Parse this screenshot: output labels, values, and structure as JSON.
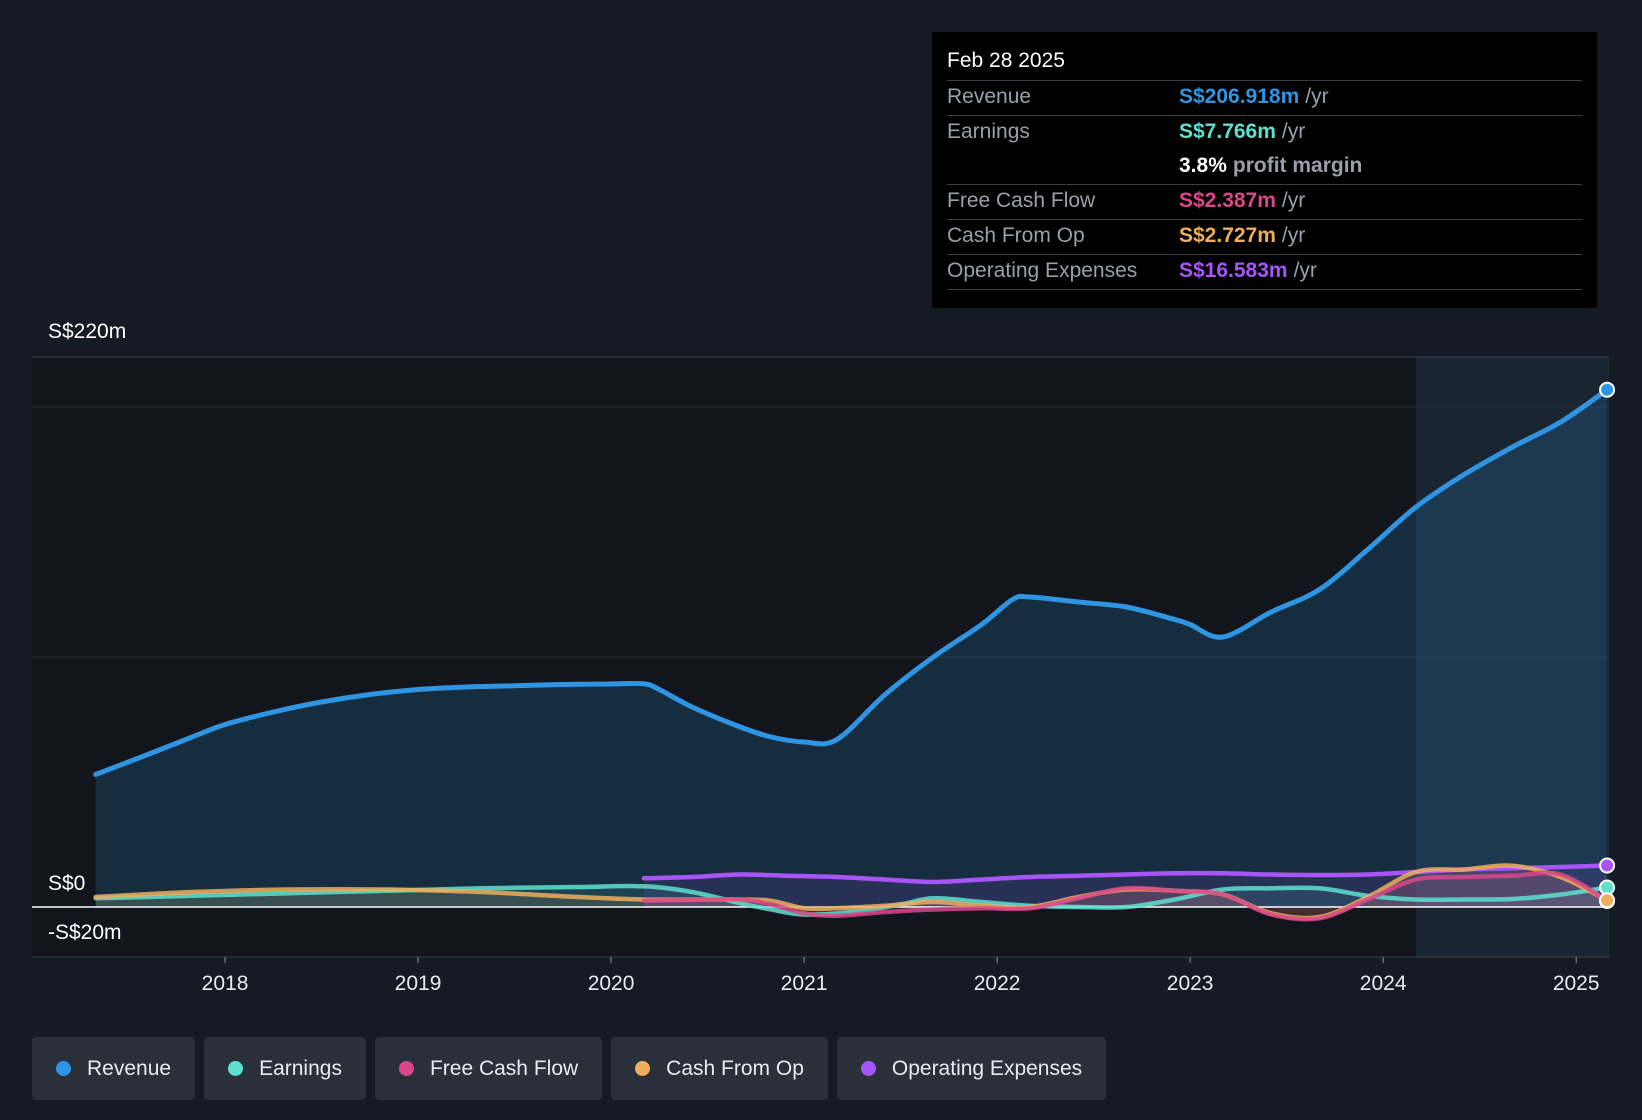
{
  "tooltip": {
    "date": "Feb 28 2025",
    "rows": {
      "revenue": {
        "label": "Revenue",
        "value": "S$206.918m",
        "unit": "/yr",
        "color": "#2f95e3"
      },
      "earnings": {
        "label": "Earnings",
        "value": "S$7.766m",
        "unit": "/yr",
        "color": "#5ee0cf"
      },
      "margin": {
        "value": "3.8%",
        "unit": "profit margin"
      },
      "fcf": {
        "label": "Free Cash Flow",
        "value": "S$2.387m",
        "unit": "/yr",
        "color": "#d9488a"
      },
      "cfo": {
        "label": "Cash From Op",
        "value": "S$2.727m",
        "unit": "/yr",
        "color": "#eeae5c"
      },
      "opex": {
        "label": "Operating Expenses",
        "value": "S$16.583m",
        "unit": "/yr",
        "color": "#a855f7"
      }
    }
  },
  "legend": [
    {
      "label": "Revenue",
      "color": "#2f95e3"
    },
    {
      "label": "Earnings",
      "color": "#5ee0cf"
    },
    {
      "label": "Free Cash Flow",
      "color": "#d9488a"
    },
    {
      "label": "Cash From Op",
      "color": "#eeae5c"
    },
    {
      "label": "Operating Expenses",
      "color": "#a855f7"
    }
  ],
  "chart_data": {
    "type": "line",
    "y_tick_labels": [
      "S$220m",
      "S$0",
      "-S$20m"
    ],
    "ylim": [
      -20,
      220
    ],
    "xlim": [
      2017.0,
      2025.17
    ],
    "x_ticks": [
      2018,
      2019,
      2020,
      2021,
      2022,
      2023,
      2024,
      2025
    ],
    "x_tick_labels": [
      "2018",
      "2019",
      "2020",
      "2021",
      "2022",
      "2023",
      "2024",
      "2025"
    ],
    "forecast_shade_start": 2024.17,
    "series": [
      {
        "name": "Revenue",
        "color": "#2f95e3",
        "x": [
          2017.33,
          2017.6,
          2017.83,
          2018.0,
          2018.25,
          2018.5,
          2018.75,
          2019.0,
          2019.25,
          2019.5,
          2019.75,
          2020.0,
          2020.17,
          2020.25,
          2020.42,
          2020.67,
          2020.83,
          2021.0,
          2021.17,
          2021.42,
          2021.67,
          2021.92,
          2022.08,
          2022.17,
          2022.42,
          2022.67,
          2022.92,
          2023.0,
          2023.17,
          2023.42,
          2023.67,
          2023.92,
          2024.17,
          2024.42,
          2024.67,
          2024.92,
          2025.16
        ],
        "y": [
          53,
          61,
          68,
          73,
          78,
          82,
          85,
          87,
          88,
          88.5,
          89,
          89.2,
          89.3,
          87,
          80,
          72,
          68,
          66,
          67,
          85,
          100,
          113,
          123,
          124,
          122,
          120,
          115,
          113,
          108,
          118,
          127,
          143,
          160,
          173,
          184,
          194,
          206.9
        ]
      },
      {
        "name": "Earnings",
        "color": "#5ee0cf",
        "x": [
          2017.33,
          2017.83,
          2018.33,
          2018.83,
          2019.33,
          2019.83,
          2020.17,
          2020.42,
          2020.67,
          2020.83,
          2021.0,
          2021.25,
          2021.5,
          2021.67,
          2021.92,
          2022.17,
          2022.42,
          2022.67,
          2022.92,
          2023.17,
          2023.42,
          2023.67,
          2023.92,
          2024.17,
          2024.42,
          2024.67,
          2024.92,
          2025.16
        ],
        "y": [
          3.5,
          4.5,
          5.5,
          6.5,
          7.5,
          8,
          8.3,
          6,
          1.5,
          -1,
          -3,
          -2,
          1,
          3.5,
          2,
          0.5,
          0,
          0,
          3,
          7,
          7.5,
          7.5,
          4.5,
          3,
          3,
          3.2,
          5,
          7.8
        ]
      },
      {
        "name": "Free Cash Flow",
        "color": "#d9488a",
        "x": [
          2020.17,
          2020.42,
          2020.67,
          2020.83,
          2021.0,
          2021.17,
          2021.42,
          2021.67,
          2021.92,
          2022.17,
          2022.42,
          2022.67,
          2022.92,
          2023.17,
          2023.42,
          2023.67,
          2023.92,
          2024.17,
          2024.42,
          2024.67,
          2024.92,
          2025.16
        ],
        "y": [
          2.5,
          2.8,
          3,
          1,
          -2.5,
          -3.5,
          -2,
          -1,
          -0.5,
          -0.5,
          3.5,
          7.5,
          6.5,
          5,
          -3,
          -4.5,
          3,
          11,
          12,
          12.5,
          13,
          2.4
        ]
      },
      {
        "name": "Cash From Op",
        "color": "#eeae5c",
        "x": [
          2017.33,
          2017.83,
          2018.33,
          2018.83,
          2019.33,
          2019.83,
          2020.17,
          2020.42,
          2020.67,
          2020.83,
          2021.0,
          2021.17,
          2021.42,
          2021.67,
          2021.92,
          2022.17,
          2022.42,
          2022.67,
          2022.92,
          2023.17,
          2023.42,
          2023.67,
          2023.92,
          2024.17,
          2024.42,
          2024.67,
          2024.92,
          2025.16
        ],
        "y": [
          4,
          6,
          7,
          7,
          6,
          4,
          3,
          3,
          3,
          2.5,
          -0.5,
          -0.5,
          0.5,
          2,
          0.5,
          0,
          4,
          7,
          6.5,
          5,
          -2.5,
          -4,
          4,
          14,
          15,
          16.5,
          12,
          2.7
        ]
      },
      {
        "name": "Operating Expenses",
        "color": "#a855f7",
        "x": [
          2020.17,
          2020.42,
          2020.67,
          2020.92,
          2021.17,
          2021.42,
          2021.67,
          2021.92,
          2022.17,
          2022.42,
          2022.67,
          2022.92,
          2023.17,
          2023.42,
          2023.67,
          2023.92,
          2024.17,
          2024.42,
          2024.67,
          2024.92,
          2025.16
        ],
        "y": [
          11.5,
          12,
          13,
          12.5,
          12,
          11,
          10,
          11,
          12,
          12.5,
          13,
          13.5,
          13.5,
          13,
          12.8,
          13,
          14,
          15,
          15.5,
          16,
          16.6
        ]
      }
    ]
  }
}
